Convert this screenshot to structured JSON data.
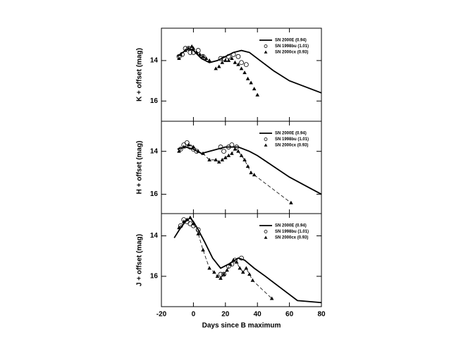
{
  "chart_data": [
    {
      "type": "line",
      "ylabel": "K + offset (mag)",
      "xlim": [
        -20,
        80
      ],
      "xticks": [
        -20,
        0,
        20,
        40,
        60,
        80
      ],
      "ylim": [
        12.4,
        17
      ],
      "yticks": [
        14,
        16
      ],
      "invert_y": true,
      "legend": "upper right",
      "series": [
        {
          "name": "SN 2000E (0.94)",
          "marker": "none",
          "line": "solid",
          "color": "#000000",
          "x": [
            -10,
            -5,
            -3,
            0,
            5,
            10,
            15,
            20,
            25,
            30,
            35,
            40,
            50,
            60,
            70,
            80
          ],
          "values": [
            13.8,
            13.5,
            13.4,
            13.5,
            13.9,
            14.1,
            14.0,
            13.8,
            13.6,
            13.5,
            13.6,
            13.9,
            14.5,
            15.0,
            15.3,
            15.6
          ]
        },
        {
          "name": "SN 1998bu (1.01)",
          "marker": "circle",
          "line": "none",
          "color": "#000000",
          "x": [
            -9,
            -7,
            -5,
            -3,
            -2,
            0,
            3,
            6,
            17,
            19,
            22,
            25,
            28,
            30,
            33
          ],
          "values": [
            13.8,
            13.7,
            13.4,
            13.4,
            13.6,
            13.6,
            13.5,
            13.8,
            13.9,
            13.9,
            13.8,
            13.7,
            13.8,
            14.1,
            14.2
          ]
        },
        {
          "name": "SN 2000cx (0.93)",
          "marker": "triangle",
          "line": "none",
          "color": "#000000",
          "x": [
            -9,
            -8,
            -5,
            -3,
            -1,
            0,
            2,
            4,
            6,
            8,
            10,
            14,
            16,
            18,
            20,
            22,
            24,
            26,
            28,
            30,
            32,
            34,
            36,
            38,
            40
          ],
          "values": [
            13.9,
            13.7,
            13.5,
            13.4,
            13.3,
            13.4,
            13.6,
            13.7,
            13.8,
            13.9,
            14.0,
            14.4,
            14.3,
            14.1,
            14.0,
            14.0,
            13.9,
            14.1,
            14.2,
            14.4,
            14.6,
            14.9,
            15.1,
            15.4,
            15.7
          ]
        }
      ]
    },
    {
      "type": "line",
      "ylabel": "H + offset (mag)",
      "xlim": [
        -20,
        80
      ],
      "xticks": [
        -20,
        0,
        20,
        40,
        60,
        80
      ],
      "ylim": [
        12.6,
        16.9
      ],
      "yticks": [
        14,
        16
      ],
      "invert_y": true,
      "legend": "upper right",
      "series": [
        {
          "name": "SN 2000E (0.94)",
          "marker": "none",
          "line": "solid",
          "color": "#000000",
          "x": [
            -10,
            -5,
            0,
            5,
            10,
            20,
            28,
            35,
            40,
            50,
            60,
            70,
            80
          ],
          "values": [
            13.9,
            13.8,
            13.9,
            14.1,
            14.0,
            13.8,
            13.8,
            14.0,
            14.2,
            14.7,
            15.2,
            15.6,
            16.0
          ]
        },
        {
          "name": "SN 1998bu (1.01)",
          "marker": "circle",
          "line": "none",
          "color": "#000000",
          "x": [
            -8,
            -6,
            -4,
            -2,
            0,
            2,
            17,
            19,
            22,
            24,
            27
          ],
          "values": [
            13.9,
            13.7,
            13.6,
            13.8,
            13.9,
            14.0,
            13.8,
            14.0,
            13.8,
            13.7,
            13.8
          ]
        },
        {
          "name": "SN 2000cx (0.93)",
          "marker": "triangle",
          "line": "dashed",
          "color": "#000000",
          "x": [
            -9,
            -6,
            -3,
            0,
            3,
            6,
            10,
            14,
            16,
            18,
            20,
            22,
            24,
            26,
            28,
            30,
            32,
            34,
            36,
            38,
            61
          ],
          "values": [
            14.0,
            13.8,
            13.7,
            13.8,
            14.0,
            14.1,
            14.4,
            14.4,
            14.5,
            14.4,
            14.3,
            14.2,
            14.1,
            13.9,
            14.0,
            14.2,
            14.4,
            14.7,
            15.0,
            15.1,
            16.4
          ]
        }
      ]
    },
    {
      "type": "line",
      "ylabel": "J + offset (mag)",
      "xlabel": "Days since B maximum",
      "xlim": [
        -20,
        80
      ],
      "xticks": [
        -20,
        0,
        20,
        40,
        60,
        80
      ],
      "ylim": [
        12.9,
        17.5
      ],
      "yticks": [
        14,
        16
      ],
      "invert_y": true,
      "legend": "upper right",
      "series": [
        {
          "name": "SN 2000E (0.94)",
          "marker": "none",
          "line": "solid",
          "color": "#000000",
          "x": [
            -12,
            -8,
            -5,
            -2,
            0,
            3,
            7,
            12,
            17,
            22,
            28,
            32,
            38,
            45,
            55,
            65,
            80
          ],
          "values": [
            14.1,
            13.6,
            13.3,
            13.1,
            13.3,
            13.7,
            14.3,
            15.1,
            15.6,
            15.4,
            15.1,
            15.2,
            15.6,
            16.0,
            16.6,
            17.2,
            17.3
          ]
        },
        {
          "name": "SN 1998bu (1.01)",
          "marker": "circle",
          "line": "none",
          "color": "#000000",
          "x": [
            -8,
            -6,
            -4,
            -2,
            0,
            3,
            17,
            19,
            22,
            24,
            26,
            30
          ],
          "values": [
            13.5,
            13.2,
            13.3,
            13.4,
            13.5,
            13.7,
            15.9,
            15.9,
            15.5,
            15.4,
            15.2,
            15.1
          ]
        },
        {
          "name": "SN 2000cx (0.93)",
          "marker": "triangle",
          "line": "dashed",
          "color": "#000000",
          "x": [
            -9,
            -6,
            -4,
            -2,
            0,
            3,
            6,
            10,
            13,
            15,
            17,
            19,
            21,
            23,
            25,
            27,
            29,
            31,
            33,
            35,
            37,
            49
          ],
          "values": [
            13.6,
            13.3,
            13.2,
            13.1,
            13.4,
            13.9,
            14.7,
            15.6,
            15.8,
            16.0,
            16.1,
            15.9,
            15.7,
            15.4,
            15.2,
            15.3,
            15.6,
            15.8,
            15.6,
            15.9,
            16.2,
            17.1
          ]
        }
      ]
    }
  ]
}
